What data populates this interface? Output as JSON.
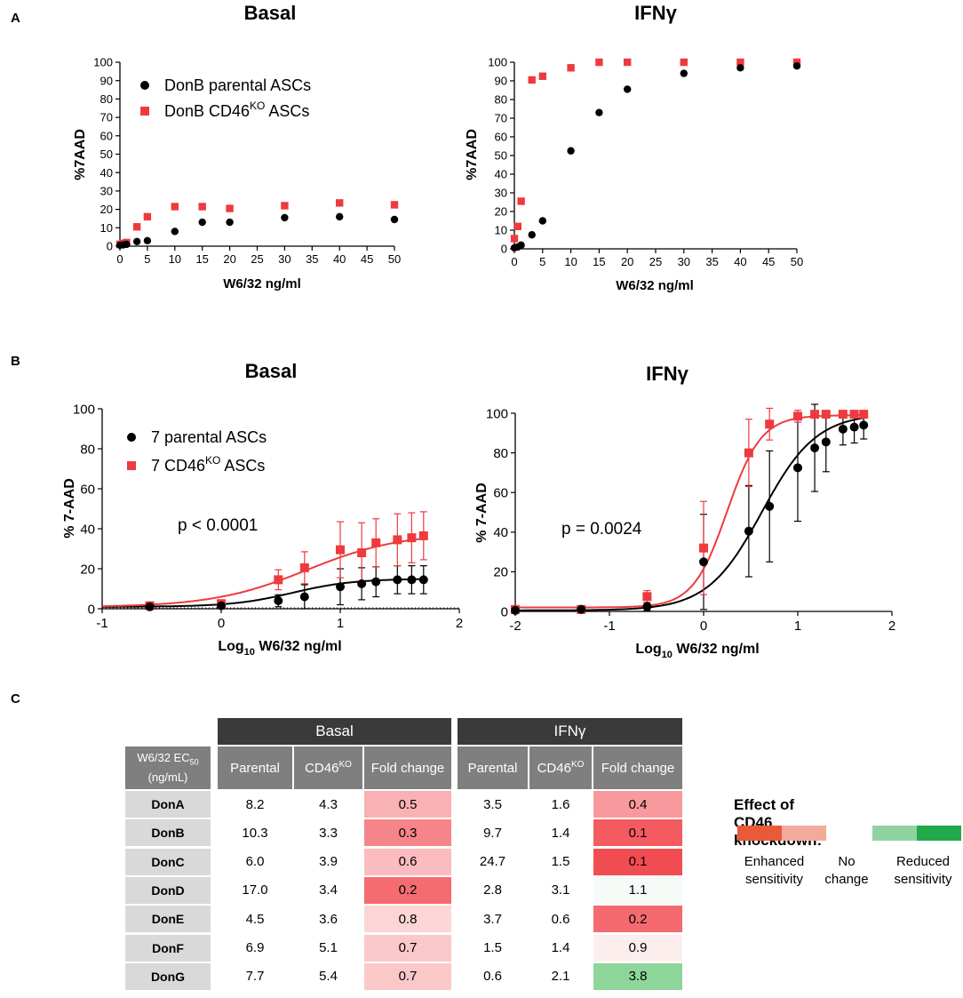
{
  "panels": {
    "a": "A",
    "b": "B",
    "c": "C"
  },
  "chart_data": [
    {
      "id": "a-basal",
      "type": "scatter",
      "title": "Basal",
      "xlabel": "W6/32 ng/ml",
      "ylabel": "%7AAD",
      "xlim": [
        0,
        50
      ],
      "ylim": [
        0,
        100
      ],
      "xticks": [
        0,
        5,
        10,
        15,
        20,
        25,
        30,
        35,
        40,
        45,
        50
      ],
      "yticks": [
        0,
        10,
        20,
        30,
        40,
        50,
        60,
        70,
        80,
        90,
        100
      ],
      "legend": [
        "DonB parental ASCs",
        "DonB CD46"
      ],
      "legend_sup": "KO",
      "legend_suffix": " ASCs",
      "series": [
        {
          "name": "DonB parental ASCs",
          "color": "#000000",
          "marker": "circle",
          "x": [
            0,
            0.6,
            1.2,
            3.1,
            5,
            10,
            15,
            20,
            30,
            40,
            50
          ],
          "y": [
            0.5,
            0.7,
            1.0,
            2.5,
            3.0,
            8.0,
            13.0,
            13.0,
            15.5,
            16.0,
            14.5
          ]
        },
        {
          "name": "DonB CD46KO ASCs",
          "color": "#ee3a3f",
          "marker": "square",
          "x": [
            0,
            0.6,
            1.2,
            3.1,
            5,
            10,
            15,
            20,
            30,
            40,
            50
          ],
          "y": [
            1.0,
            1.5,
            2.0,
            10.5,
            16.0,
            21.5,
            21.5,
            20.5,
            22.0,
            23.5,
            22.5
          ]
        }
      ]
    },
    {
      "id": "a-ifng",
      "type": "scatter",
      "title": "IFNγ",
      "xlabel": "W6/32 ng/ml",
      "ylabel": "%7AAD",
      "xlim": [
        0,
        50
      ],
      "ylim": [
        0,
        100
      ],
      "xticks": [
        0,
        5,
        10,
        15,
        20,
        25,
        30,
        35,
        40,
        45,
        50
      ],
      "yticks": [
        0,
        10,
        20,
        30,
        40,
        50,
        60,
        70,
        80,
        90,
        100
      ],
      "series": [
        {
          "name": "DonB parental ASCs",
          "color": "#000000",
          "marker": "circle",
          "x": [
            0,
            0.6,
            1.2,
            3.1,
            5,
            10,
            15,
            20,
            30,
            40,
            50
          ],
          "y": [
            0.5,
            1.0,
            2.0,
            7.5,
            15.0,
            52.5,
            73.0,
            85.5,
            94.0,
            97.0,
            98.0
          ]
        },
        {
          "name": "DonB CD46KO ASCs",
          "color": "#ee3a3f",
          "marker": "square",
          "x": [
            0,
            0.6,
            1.2,
            3.1,
            5,
            10,
            15,
            20,
            30,
            40,
            50
          ],
          "y": [
            5.5,
            12.0,
            25.5,
            90.5,
            92.5,
            97.0,
            100,
            100,
            100,
            100,
            100
          ]
        }
      ]
    },
    {
      "id": "b-basal",
      "type": "line",
      "title": "Basal",
      "xlabel_pre": "Log",
      "xlabel_sub": "10",
      "xlabel_post": " W6/32 ng/ml",
      "ylabel": "% 7-AAD",
      "xlim": [
        -1,
        2
      ],
      "ylim": [
        0,
        100
      ],
      "xticks": [
        -1,
        0,
        1,
        2
      ],
      "yticks": [
        0,
        20,
        40,
        60,
        80,
        100
      ],
      "annotation": "p < 0.0001",
      "legend": [
        "7 parental ASCs",
        "7 CD46"
      ],
      "legend_sup": "KO",
      "legend_suffix": " ASCs",
      "series": [
        {
          "name": "7 parental ASCs",
          "color": "#000000",
          "marker": "circle",
          "x": [
            -0.6,
            0,
            0.48,
            0.7,
            1.0,
            1.18,
            1.3,
            1.48,
            1.6,
            1.7
          ],
          "y": [
            1.0,
            1.5,
            4.0,
            6.0,
            11.0,
            12.5,
            13.5,
            14.5,
            14.5,
            14.5
          ],
          "err": [
            0.5,
            1.0,
            3.0,
            6.0,
            9.0,
            8.0,
            7.5,
            7.0,
            7.0,
            7.0
          ],
          "fit": {
            "bottom": 1.0,
            "top": 15.0,
            "logec50": 0.6,
            "hill": 1.7
          }
        },
        {
          "name": "7 CD46KO ASCs",
          "color": "#ee3a3f",
          "marker": "square",
          "x": [
            -0.6,
            0,
            0.48,
            0.7,
            1.0,
            1.18,
            1.3,
            1.48,
            1.6,
            1.7
          ],
          "y": [
            1.5,
            2.5,
            14.5,
            20.5,
            29.5,
            28.0,
            33.0,
            34.5,
            35.5,
            36.5
          ],
          "err": [
            1.0,
            2.0,
            5.0,
            8.0,
            14.0,
            15.0,
            12.0,
            13.0,
            12.5,
            12.0
          ],
          "fit": {
            "bottom": 0.8,
            "top": 38.0,
            "logec50": 0.72,
            "hill": 1.1
          }
        }
      ]
    },
    {
      "id": "b-ifng",
      "type": "line",
      "title": "IFNγ",
      "xlabel_pre": "Log",
      "xlabel_sub": "10",
      "xlabel_post": " W6/32 ng/ml",
      "ylabel": "% 7-AAD",
      "xlim": [
        -2,
        2
      ],
      "ylim": [
        0,
        100
      ],
      "xticks": [
        -2,
        -1,
        0,
        1,
        2
      ],
      "yticks": [
        0,
        20,
        40,
        60,
        80,
        100
      ],
      "annotation": "p = 0.0024",
      "series": [
        {
          "name": "7 parental ASCs",
          "color": "#000000",
          "marker": "circle",
          "x": [
            -2,
            -1.3,
            -0.6,
            0,
            0.48,
            0.7,
            1.0,
            1.18,
            1.3,
            1.48,
            1.6,
            1.7
          ],
          "y": [
            0.5,
            1.0,
            2.5,
            25.0,
            40.5,
            53.0,
            72.5,
            82.5,
            85.5,
            92.0,
            93.0,
            94.0
          ],
          "err": [
            0.5,
            1.0,
            2.0,
            24.0,
            23.0,
            28.0,
            27.0,
            22.0,
            15.0,
            8.0,
            8.0,
            7.0
          ],
          "fit": {
            "bottom": 0.5,
            "top": 100,
            "logec50": 0.62,
            "hill": 1.5
          }
        },
        {
          "name": "7 CD46KO ASCs",
          "color": "#ee3a3f",
          "marker": "square",
          "x": [
            -2,
            -1.3,
            -0.6,
            0,
            0.48,
            0.7,
            1.0,
            1.18,
            1.3,
            1.48,
            1.6,
            1.7
          ],
          "y": [
            1.0,
            1.0,
            7.5,
            32.0,
            80.0,
            94.5,
            98.5,
            99.5,
            99.5,
            99.5,
            99.5,
            99.5
          ],
          "err": [
            0.5,
            1.0,
            3.0,
            23.5,
            17.0,
            8.0,
            3.0,
            1.0,
            1.0,
            1.0,
            1.0,
            1.0
          ],
          "fit": {
            "bottom": 2.0,
            "top": 99.0,
            "logec50": 0.25,
            "hill": 2.4
          }
        }
      ]
    },
    {
      "id": "c-table",
      "type": "table",
      "corner_label": "W6/32 EC",
      "corner_sub": "50",
      "corner_unit": "(ng/mL)",
      "groups": [
        "Basal",
        "IFNγ"
      ],
      "columns": [
        "Parental",
        "CD46",
        "Fold change"
      ],
      "column_sup": "KO",
      "rows": [
        {
          "name": "DonA",
          "basal": [
            "8.2",
            "4.3",
            "0.5"
          ],
          "ifng": [
            "3.5",
            "1.6",
            "0.4"
          ],
          "basal_color": "#f9b2b4",
          "ifng_color": "#f89a9d"
        },
        {
          "name": "DonB",
          "basal": [
            "10.3",
            "3.3",
            "0.3"
          ],
          "ifng": [
            "9.7",
            "1.4",
            "0.1"
          ],
          "basal_color": "#f58589",
          "ifng_color": "#f35b61"
        },
        {
          "name": "DonC",
          "basal": [
            "6.0",
            "3.9",
            "0.6"
          ],
          "ifng": [
            "24.7",
            "1.5",
            "0.1"
          ],
          "basal_color": "#fabcbe",
          "ifng_color": "#f24c53"
        },
        {
          "name": "DonD",
          "basal": [
            "17.0",
            "3.4",
            "0.2"
          ],
          "ifng": [
            "2.8",
            "3.1",
            "1.1"
          ],
          "basal_color": "#f46c71",
          "ifng_color": "#f7fbf8"
        },
        {
          "name": "DonE",
          "basal": [
            "4.5",
            "3.6",
            "0.8"
          ],
          "ifng": [
            "3.7",
            "0.6",
            "0.2"
          ],
          "basal_color": "#fcd5d6",
          "ifng_color": "#f46a70"
        },
        {
          "name": "DonF",
          "basal": [
            "6.9",
            "5.1",
            "0.7"
          ],
          "ifng": [
            "1.5",
            "1.4",
            "0.9"
          ],
          "basal_color": "#fbc8ca",
          "ifng_color": "#fdeeee"
        },
        {
          "name": "DonG",
          "basal": [
            "7.7",
            "5.4",
            "0.7"
          ],
          "ifng": [
            "0.6",
            "2.1",
            "3.8"
          ],
          "basal_color": "#fbc8ca",
          "ifng_color": "#8ed59a"
        }
      ],
      "legend": {
        "title": "Effect of CD46 knockdown:",
        "colors": [
          "#e85a3a",
          "#f4aa9a",
          "#8fd3a0",
          "#22a94b"
        ],
        "labels": [
          [
            "Enhanced",
            "sensitivity"
          ],
          [
            "No",
            "change"
          ],
          [
            "Reduced",
            "sensitivity"
          ]
        ]
      }
    }
  ]
}
